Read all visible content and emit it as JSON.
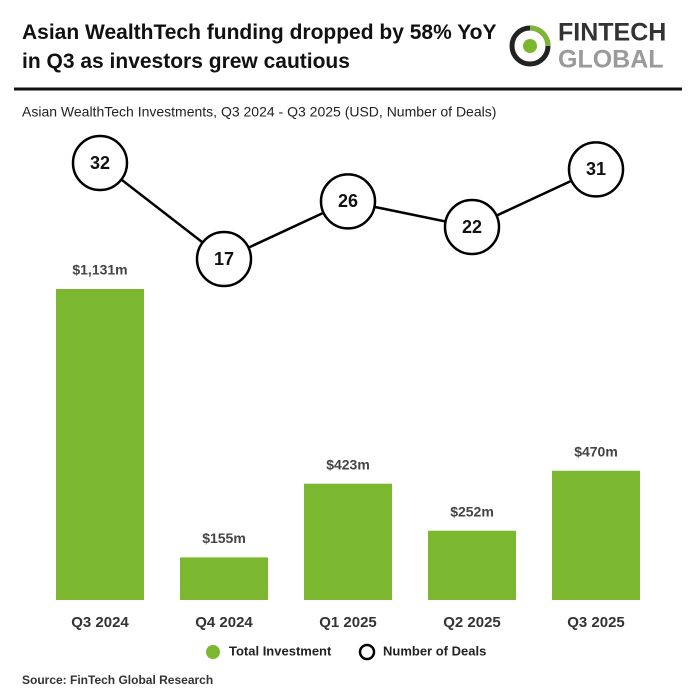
{
  "chart_data": {
    "type": "combo",
    "title": "Asian WealthTech funding dropped by 58% YoY in Q3 as investors grew cautious",
    "subtitle": "Asian WealthTech Investments, Q3 2024 - Q3 2025 (USD, Number of Deals)",
    "logo": [
      "FINTECH",
      "GLOBAL"
    ],
    "source": "Source: FinTech Global Research",
    "categories": [
      "Q3 2024",
      "Q4 2024",
      "Q1 2025",
      "Q2 2025",
      "Q3 2025"
    ],
    "series": [
      {
        "name": "Total Investment",
        "type": "bar",
        "color": "#7cb82f",
        "values": [
          1131,
          155,
          423,
          252,
          470
        ],
        "value_labels": [
          "$1,131m",
          "$155m",
          "$423m",
          "$252m",
          "$470m"
        ]
      },
      {
        "name": "Number of Deals",
        "type": "line",
        "color": "#000000",
        "values": [
          32,
          17,
          26,
          22,
          31
        ]
      }
    ]
  }
}
